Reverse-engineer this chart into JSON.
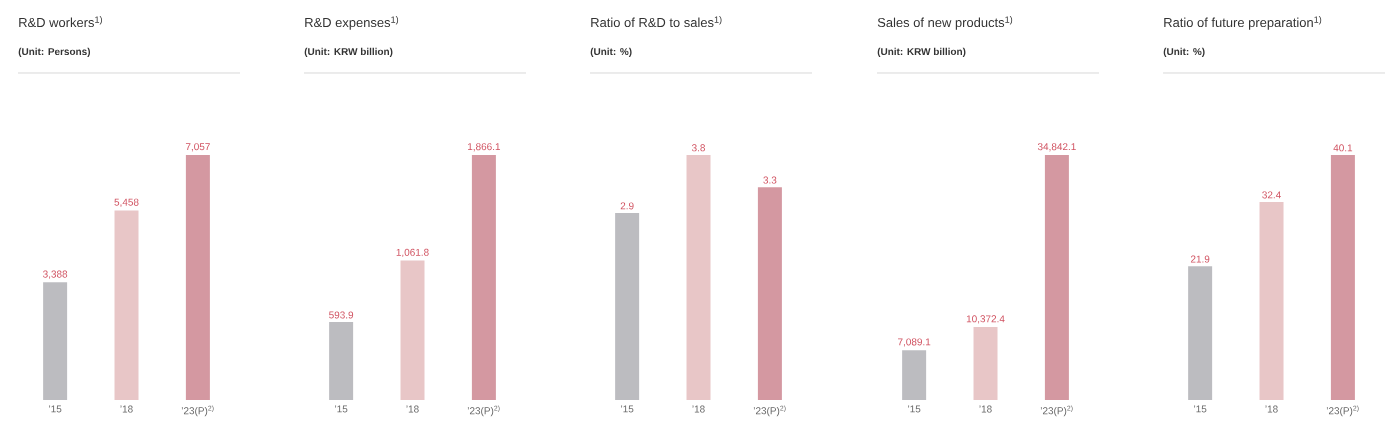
{
  "chart_data": [
    {
      "type": "bar",
      "title": "R&D workers$^{1)}$",
      "subtitle": "(Unit: Persons)",
      "categories": [
        "’15",
        "’18",
        "’23(P)$^{2)}$"
      ],
      "values": [
        3388,
        5458,
        7057
      ],
      "value_labels": [
        "3,388",
        "5,458",
        "7,057"
      ],
      "colors": [
        "#bcbcc0",
        "#e8c6c7",
        "#d498a1"
      ]
    },
    {
      "type": "bar",
      "title": "R&D expenses$^{1)}$",
      "subtitle": "(Unit: KRW billion)",
      "categories": [
        "’15",
        "’18",
        "’23(P)$^{2)}$"
      ],
      "values": [
        593.9,
        1061.8,
        1866.1
      ],
      "value_labels": [
        "593.9",
        "1,061.8",
        "1,866.1"
      ],
      "colors": [
        "#bcbcc0",
        "#e8c6c7",
        "#d498a1"
      ]
    },
    {
      "type": "bar",
      "title": "Ratio of R&D to sales$^{1)}$",
      "subtitle": "(Unit: %)",
      "categories": [
        "’15",
        "’18",
        "’23(P)$^{2)}$"
      ],
      "values": [
        2.9,
        3.8,
        3.3
      ],
      "value_labels": [
        "2.9",
        "3.8",
        "3.3"
      ],
      "colors": [
        "#bcbcc0",
        "#e8c6c7",
        "#d498a1"
      ]
    },
    {
      "type": "bar",
      "title": "Sales of new products$^{1)}$",
      "subtitle": "(Unit: KRW billion)",
      "categories": [
        "’15",
        "’18",
        "’23(P)$^{2)}$"
      ],
      "values": [
        7089.1,
        10372.4,
        34842.1
      ],
      "value_labels": [
        "7,089.1",
        "10,372.4",
        "34,842.1"
      ],
      "colors": [
        "#bcbcc0",
        "#e8c6c7",
        "#d498a1"
      ]
    },
    {
      "type": "bar",
      "title": "Ratio of future preparation$^{1)}$",
      "subtitle": "(Unit: %)",
      "categories": [
        "’15",
        "’18",
        "’23(P)$^{2)}$"
      ],
      "values": [
        21.9,
        32.4,
        40.1
      ],
      "value_labels": [
        "21.9",
        "32.4",
        "40.1"
      ],
      "colors": [
        "#bcbcc0",
        "#e8c6c7",
        "#d498a1"
      ]
    }
  ]
}
